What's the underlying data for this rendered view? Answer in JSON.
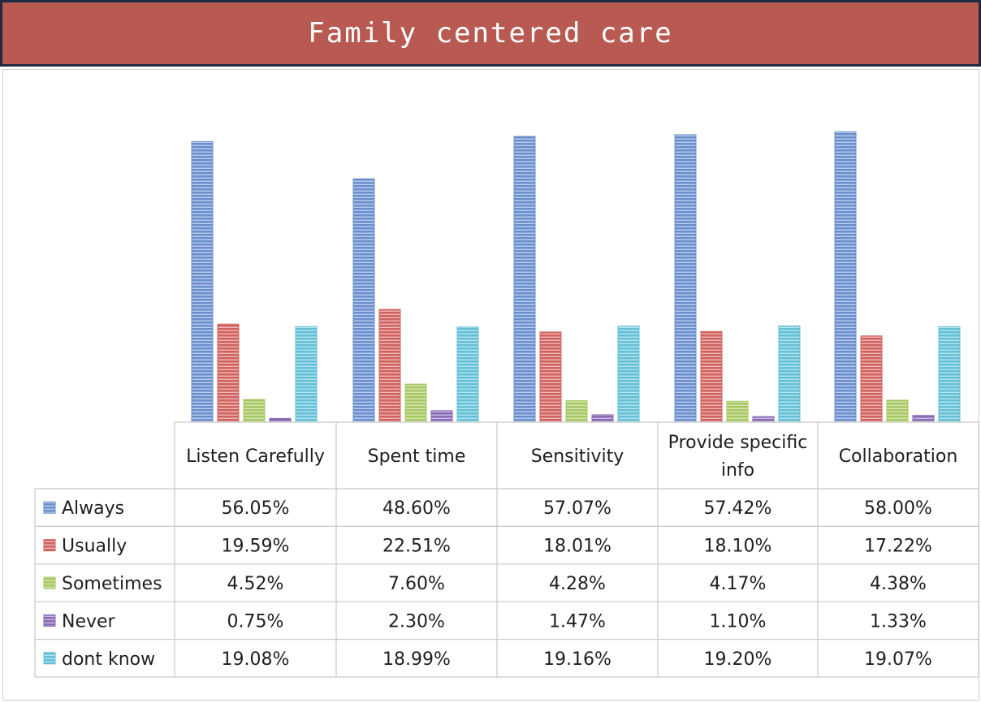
{
  "title": "Family centered care",
  "colors": {
    "banner": "#b85a52",
    "border": "#1e2a44",
    "series": [
      "#6a8fcf",
      "#d2625e",
      "#a7c860",
      "#8a6ab5",
      "#62c0d8"
    ]
  },
  "chart_data": {
    "type": "bar",
    "title": "Family centered care",
    "categories": [
      "Listen Carefully",
      "Spent time",
      "Sensitivity",
      "Provide specific info",
      "Collaboration"
    ],
    "category_lines": [
      [
        "Listen Carefully"
      ],
      [
        "Spent time"
      ],
      [
        "Sensitivity"
      ],
      [
        "Provide specific",
        "info"
      ],
      [
        "Collaboration"
      ]
    ],
    "series": [
      {
        "name": "Always",
        "values": [
          56.05,
          48.6,
          57.07,
          57.42,
          58.0
        ],
        "labels": [
          "56.05%",
          "48.60%",
          "57.07%",
          "57.42%",
          "58.00%"
        ]
      },
      {
        "name": "Usually",
        "values": [
          19.59,
          22.51,
          18.01,
          18.1,
          17.22
        ],
        "labels": [
          "19.59%",
          "22.51%",
          "18.01%",
          "18.10%",
          "17.22%"
        ]
      },
      {
        "name": "Sometimes",
        "values": [
          4.52,
          7.6,
          4.28,
          4.17,
          4.38
        ],
        "labels": [
          "4.52%",
          "7.60%",
          "4.28%",
          "4.17%",
          "4.38%"
        ]
      },
      {
        "name": "Never",
        "values": [
          0.75,
          2.3,
          1.47,
          1.1,
          1.33
        ],
        "labels": [
          "0.75%",
          "2.30%",
          "1.47%",
          "1.10%",
          "1.33%"
        ]
      },
      {
        "name": "dont know",
        "values": [
          19.08,
          18.99,
          19.16,
          19.2,
          19.07
        ],
        "labels": [
          "19.08%",
          "18.99%",
          "19.16%",
          "19.20%",
          "19.07%"
        ]
      }
    ],
    "ylim": [
      0,
      60
    ],
    "xlabel": "",
    "ylabel": "",
    "grid": false,
    "legend": "data-table"
  }
}
